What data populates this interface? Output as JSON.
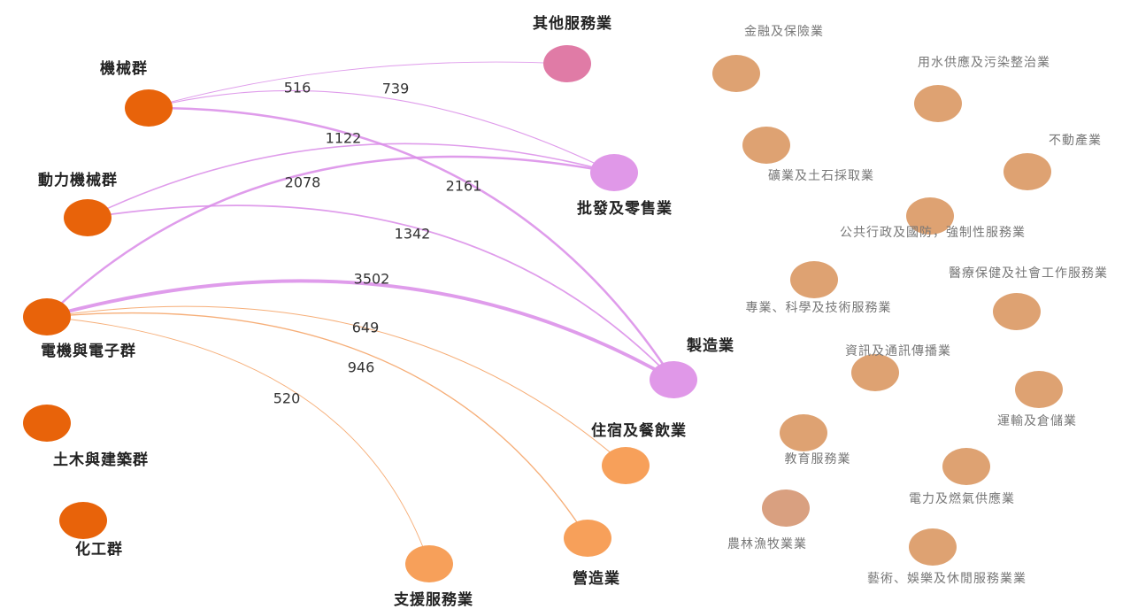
{
  "nodes": [
    {
      "label": "機械群",
      "color": "#e8630a"
    },
    {
      "label": "動力機械群",
      "color": "#e8630a"
    },
    {
      "label": "電機與電子群",
      "color": "#e8630a"
    },
    {
      "label": "土木與建築群",
      "color": "#e8630a"
    },
    {
      "label": "化工群",
      "color": "#e8630a"
    },
    {
      "label": "其他服務業",
      "color": "#e07ba6"
    },
    {
      "label": "批發及零售業",
      "color": "#e098e8"
    },
    {
      "label": "製造業",
      "color": "#e098e8"
    },
    {
      "label": "住宿及餐飲業",
      "color": "#f7a05a"
    },
    {
      "label": "營造業",
      "color": "#f7a05a"
    },
    {
      "label": "支援服務業",
      "color": "#f7a05a"
    },
    {
      "label": "金融及保險業",
      "color": "#dea272"
    },
    {
      "label": "用水供應及污染整治業",
      "color": "#dea272"
    },
    {
      "label": "礦業及土石採取業",
      "color": "#dea272"
    },
    {
      "label": "不動產業",
      "color": "#dea272"
    },
    {
      "label": "公共行政及國防，強制性服務業",
      "color": "#dea272"
    },
    {
      "label": "醫療保健及社會工作服務業",
      "color": "#dea272"
    },
    {
      "label": "專業、科學及技術服務業",
      "color": "#dea272"
    },
    {
      "label": "資訊及通訊傳播業",
      "color": "#dea272"
    },
    {
      "label": "運輸及倉儲業",
      "color": "#dea272"
    },
    {
      "label": "教育服務業",
      "color": "#dea272"
    },
    {
      "label": "電力及燃氣供應業",
      "color": "#dea272"
    },
    {
      "label": "農林漁牧業業",
      "color": "#d9a080"
    },
    {
      "label": "藝術、娛樂及休閒服務業業",
      "color": "#dea272"
    }
  ],
  "edges": [
    {
      "source": 0,
      "target": 5,
      "value": 516
    },
    {
      "source": 0,
      "target": 6,
      "value": 739
    },
    {
      "source": 1,
      "target": 6,
      "value": 1122
    },
    {
      "source": 0,
      "target": 7,
      "value": 2161
    },
    {
      "source": 1,
      "target": 7,
      "value": 1342
    },
    {
      "source": 2,
      "target": 6,
      "value": 2078
    },
    {
      "source": 2,
      "target": 7,
      "value": 3502
    },
    {
      "source": 2,
      "target": 8,
      "value": 649
    },
    {
      "source": 2,
      "target": 9,
      "value": 946
    },
    {
      "source": 2,
      "target": 10,
      "value": 520
    }
  ]
}
